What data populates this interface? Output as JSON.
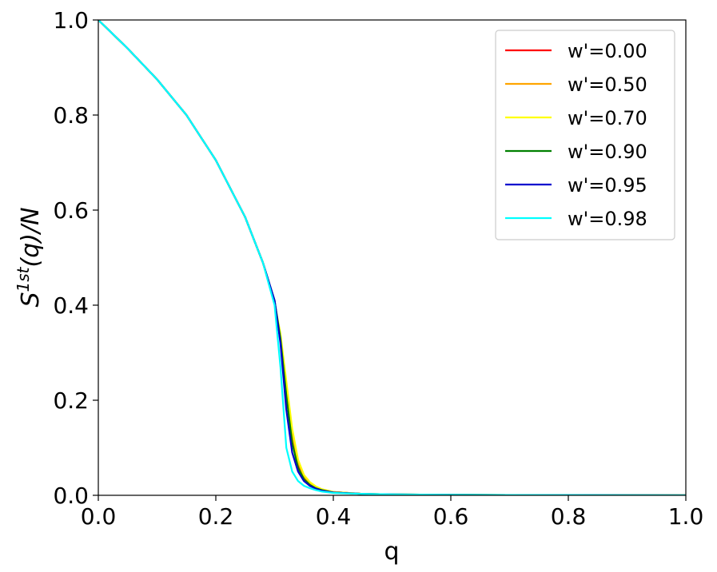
{
  "chart_data": {
    "type": "line",
    "title": "",
    "xlabel": "q",
    "ylabel_base": "S",
    "ylabel_sup": "1st",
    "ylabel_rest": "(q)/N",
    "xlim": [
      0,
      1
    ],
    "ylim": [
      0,
      1
    ],
    "x_ticks": [
      "0.0",
      "0.2",
      "0.4",
      "0.6",
      "0.8",
      "1.0"
    ],
    "y_ticks": [
      "0.0",
      "0.2",
      "0.4",
      "0.6",
      "0.8",
      "1.0"
    ],
    "grid": false,
    "legend_position": "top-right",
    "x": [
      0.0,
      0.05,
      0.1,
      0.15,
      0.2,
      0.25,
      0.28,
      0.3,
      0.31,
      0.32,
      0.33,
      0.34,
      0.35,
      0.36,
      0.37,
      0.38,
      0.4,
      0.45,
      0.5,
      0.6,
      0.8,
      1.0
    ],
    "series": [
      {
        "name": "w'=0.00",
        "color": "#ff0000",
        "values": [
          1.0,
          0.94,
          0.875,
          0.8,
          0.705,
          0.585,
          0.49,
          0.405,
          0.33,
          0.22,
          0.12,
          0.065,
          0.038,
          0.025,
          0.017,
          0.012,
          0.007,
          0.003,
          0.002,
          0.001,
          0.0005,
          0.0
        ]
      },
      {
        "name": "w'=0.50",
        "color": "#ffa500",
        "values": [
          1.0,
          0.94,
          0.875,
          0.8,
          0.705,
          0.585,
          0.49,
          0.405,
          0.335,
          0.23,
          0.13,
          0.07,
          0.04,
          0.026,
          0.018,
          0.013,
          0.007,
          0.003,
          0.002,
          0.001,
          0.0005,
          0.0
        ]
      },
      {
        "name": "w'=0.70",
        "color": "#ffff00",
        "values": [
          1.0,
          0.94,
          0.875,
          0.8,
          0.705,
          0.585,
          0.49,
          0.405,
          0.34,
          0.24,
          0.14,
          0.075,
          0.043,
          0.028,
          0.019,
          0.013,
          0.007,
          0.003,
          0.002,
          0.001,
          0.0005,
          0.0
        ]
      },
      {
        "name": "w'=0.90",
        "color": "#008000",
        "values": [
          1.0,
          0.94,
          0.875,
          0.8,
          0.705,
          0.585,
          0.49,
          0.41,
          0.33,
          0.21,
          0.11,
          0.058,
          0.034,
          0.022,
          0.015,
          0.011,
          0.006,
          0.003,
          0.002,
          0.001,
          0.0005,
          0.0
        ]
      },
      {
        "name": "w'=0.95",
        "color": "#0000cd",
        "values": [
          1.0,
          0.94,
          0.875,
          0.8,
          0.705,
          0.585,
          0.49,
          0.41,
          0.32,
          0.18,
          0.09,
          0.05,
          0.03,
          0.02,
          0.014,
          0.01,
          0.006,
          0.003,
          0.002,
          0.001,
          0.0005,
          0.0
        ]
      },
      {
        "name": "w'=0.98",
        "color": "#00ffff",
        "values": [
          1.0,
          0.94,
          0.875,
          0.8,
          0.705,
          0.585,
          0.49,
          0.4,
          0.27,
          0.1,
          0.05,
          0.03,
          0.02,
          0.015,
          0.011,
          0.008,
          0.005,
          0.003,
          0.002,
          0.001,
          0.0005,
          0.0
        ]
      }
    ]
  }
}
